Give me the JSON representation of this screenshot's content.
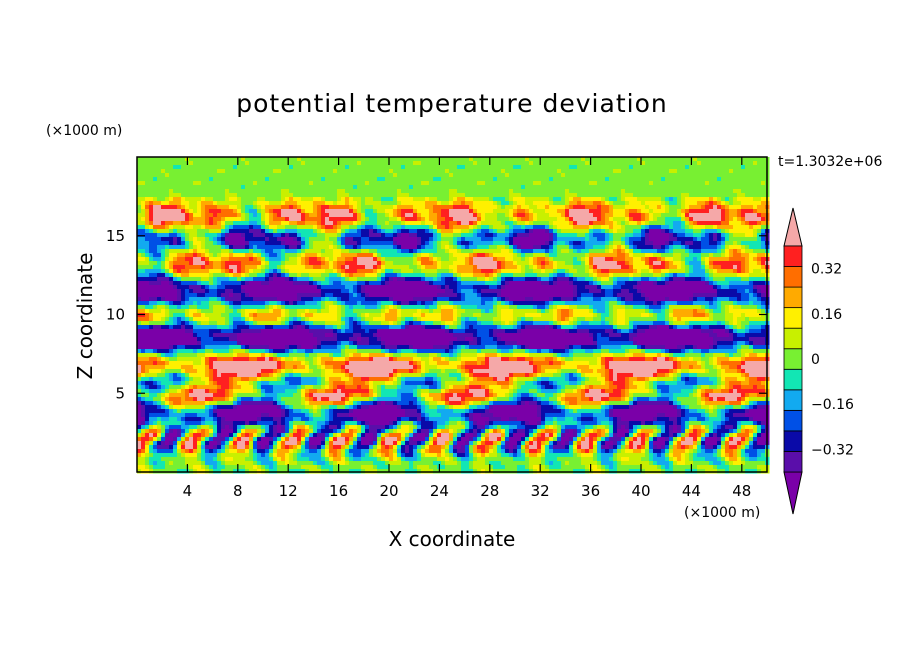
{
  "chart_data": {
    "type": "heatmap",
    "title": "potential temperature deviation",
    "xlabel": "X coordinate",
    "ylabel": "Z coordinate",
    "x_unit": "(×1000 m)",
    "y_unit": "(×1000 m)",
    "time_label": "t=1.3032e+06",
    "xlim": [
      0,
      50
    ],
    "ylim": [
      0,
      20
    ],
    "x_ticks": [
      4,
      8,
      12,
      16,
      20,
      24,
      28,
      32,
      36,
      40,
      44,
      48
    ],
    "y_ticks": [
      5,
      10,
      15
    ],
    "colorbar": {
      "levels": [
        -0.48,
        -0.4,
        -0.32,
        -0.24,
        -0.16,
        -0.08,
        0,
        0.08,
        0.16,
        0.24,
        0.32,
        0.4,
        0.48
      ],
      "tick_values": [
        0.32,
        0.16,
        0,
        -0.16,
        -0.32
      ],
      "tick_labels": [
        "0.32",
        "0.16",
        "0",
        "−0.16",
        "−0.32"
      ],
      "colors": [
        "#7a00a8",
        "#5a0eaa",
        "#0a0aa8",
        "#0050e6",
        "#12aaf0",
        "#12e6b4",
        "#78f032",
        "#c8f000",
        "#fff000",
        "#ffaa00",
        "#ff6e00",
        "#ff2020",
        "#f5a8a8"
      ],
      "extend": "both"
    },
    "field_features": [
      {
        "z": 16.2,
        "amp": 0.55,
        "kind": "positive-cells"
      },
      {
        "z": 14.8,
        "amp": -0.55,
        "kind": "negative-cells"
      },
      {
        "z": 13.2,
        "amp": 0.5,
        "kind": "positive-cells"
      },
      {
        "z": 11.5,
        "amp": -0.6,
        "kind": "negative-band"
      },
      {
        "z": 9.8,
        "amp": 0.4,
        "kind": "positive-cells"
      },
      {
        "z": 8.6,
        "amp": -0.7,
        "kind": "negative-band"
      },
      {
        "z": 6.5,
        "amp": 0.7,
        "kind": "positive-band"
      },
      {
        "z": 5.8,
        "amp": -0.5,
        "kind": "negative-band"
      },
      {
        "z": 4.7,
        "amp": 0.7,
        "kind": "positive-layer"
      },
      {
        "z": 4.0,
        "amp": -0.75,
        "kind": "negative-layer"
      },
      {
        "z": 2.0,
        "amp": 0.3,
        "kind": "plumes"
      }
    ]
  }
}
